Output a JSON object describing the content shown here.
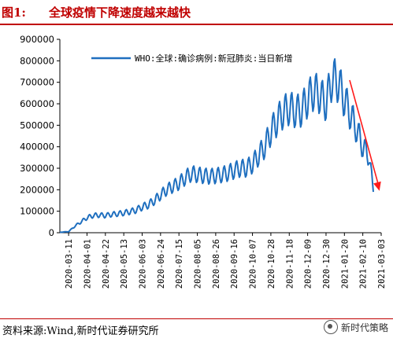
{
  "figure": {
    "label": "图1:",
    "title": "全球疫情下降速度越来越快",
    "source": "资料来源:Wind,新时代证券研究所",
    "watermark": "新时代策略"
  },
  "colors": {
    "series": "#1f6fbf",
    "title": "#c00000",
    "arrow": "#ff1a1a"
  },
  "chart_data": {
    "type": "line",
    "title": "",
    "xlabel": "",
    "ylabel": "",
    "ylim": [
      0,
      900000
    ],
    "yticks": [
      0,
      100000,
      200000,
      300000,
      400000,
      500000,
      600000,
      700000,
      800000,
      900000
    ],
    "yticklabels": [
      "0",
      "100000",
      "200000",
      "300000",
      "400000",
      "500000",
      "600000",
      "700000",
      "800000",
      "900000"
    ],
    "xlim": [
      "2020-03-01",
      "2021-03-03"
    ],
    "xticks": [
      "2020-03-11",
      "2020-04-01",
      "2020-04-22",
      "2020-05-13",
      "2020-06-03",
      "2020-06-24",
      "2020-07-15",
      "2020-08-05",
      "2020-08-26",
      "2020-09-16",
      "2020-10-07",
      "2020-10-28",
      "2020-11-18",
      "2020-12-09",
      "2020-12-30",
      "2021-01-20",
      "2021-02-10",
      "2021-03-03"
    ],
    "grid": false,
    "legend": "top",
    "annotation": "red downward arrow indicating declining trend",
    "series": [
      {
        "name": "WHO:全球:确诊病例:新冠肺炎:当日新增",
        "points": [
          [
            "2020-03-01",
            2000
          ],
          [
            "2020-03-11",
            5000
          ],
          [
            "2020-03-18",
            30000
          ],
          [
            "2020-03-25",
            50000
          ],
          [
            "2020-04-01",
            70000
          ],
          [
            "2020-04-08",
            80000
          ],
          [
            "2020-04-15",
            82000
          ],
          [
            "2020-04-22",
            80000
          ],
          [
            "2020-04-29",
            85000
          ],
          [
            "2020-05-06",
            88000
          ],
          [
            "2020-05-13",
            92000
          ],
          [
            "2020-05-20",
            98000
          ],
          [
            "2020-05-27",
            105000
          ],
          [
            "2020-06-03",
            120000
          ],
          [
            "2020-06-10",
            130000
          ],
          [
            "2020-06-17",
            150000
          ],
          [
            "2020-06-24",
            175000
          ],
          [
            "2020-07-01",
            200000
          ],
          [
            "2020-07-08",
            215000
          ],
          [
            "2020-07-15",
            230000
          ],
          [
            "2020-07-22",
            255000
          ],
          [
            "2020-07-29",
            275000
          ],
          [
            "2020-08-05",
            270000
          ],
          [
            "2020-08-12",
            265000
          ],
          [
            "2020-08-19",
            262000
          ],
          [
            "2020-08-26",
            265000
          ],
          [
            "2020-09-02",
            270000
          ],
          [
            "2020-09-09",
            278000
          ],
          [
            "2020-09-16",
            290000
          ],
          [
            "2020-09-23",
            300000
          ],
          [
            "2020-09-30",
            300000
          ],
          [
            "2020-10-07",
            320000
          ],
          [
            "2020-10-14",
            360000
          ],
          [
            "2020-10-21",
            400000
          ],
          [
            "2020-10-28",
            470000
          ],
          [
            "2020-11-04",
            520000
          ],
          [
            "2020-11-11",
            560000
          ],
          [
            "2020-11-18",
            580000
          ],
          [
            "2020-11-25",
            565000
          ],
          [
            "2020-12-02",
            570000
          ],
          [
            "2020-12-09",
            620000
          ],
          [
            "2020-12-16",
            660000
          ],
          [
            "2020-12-23",
            640000
          ],
          [
            "2020-12-30",
            600000
          ],
          [
            "2021-01-06",
            720000
          ],
          [
            "2021-01-13",
            700000
          ],
          [
            "2021-01-20",
            620000
          ],
          [
            "2021-01-27",
            550000
          ],
          [
            "2021-02-03",
            480000
          ],
          [
            "2021-02-10",
            400000
          ],
          [
            "2021-02-17",
            360000
          ],
          [
            "2021-02-22",
            190000
          ]
        ]
      }
    ]
  }
}
